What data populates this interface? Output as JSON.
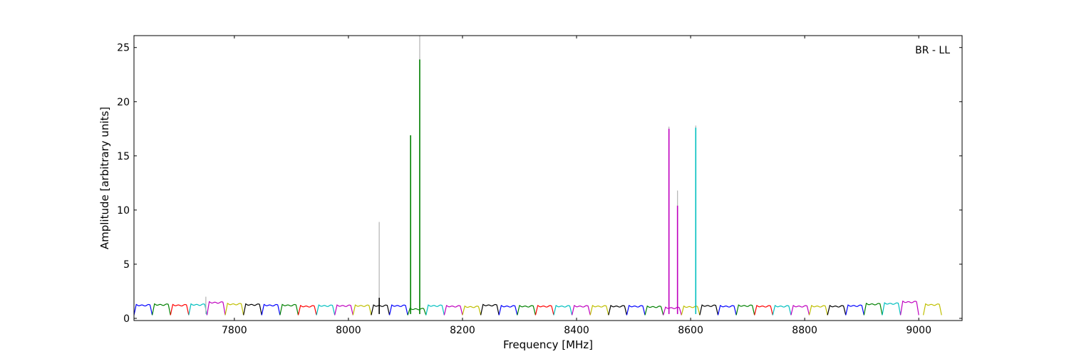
{
  "chart_data": {
    "type": "line",
    "title": "",
    "annotation": "BR - LL",
    "xlabel": "Frequency [MHz]",
    "ylabel": "Amplitude [arbitrary units]",
    "xlim": [
      7624,
      9076
    ],
    "ylim": [
      -0.2,
      26.1
    ],
    "xticks": [
      7800,
      8000,
      8200,
      8400,
      8600,
      8800,
      9000
    ],
    "yticks": [
      0,
      5,
      10,
      15,
      20,
      25
    ],
    "grid": false,
    "legend": "none",
    "channel_width_mhz": 32,
    "channel_shape": "bandpass ripple per channel: dip to ~0.3 at channel edges, plateau ~0.9-1.3",
    "colors": {
      "blue": "#0000ff",
      "green": "#008000",
      "red": "#ff0000",
      "cyan": "#00bfbf",
      "magenta": "#bf00bf",
      "olive": "#bfbf00",
      "black": "#000000",
      "gray": "#b3b3b3"
    },
    "color_cycle": [
      "blue",
      "green",
      "red",
      "cyan",
      "magenta",
      "olive",
      "black"
    ],
    "channels": [
      {
        "start": 7624,
        "color": "blue",
        "level": 1.25
      },
      {
        "start": 7656,
        "color": "green",
        "level": 1.3
      },
      {
        "start": 7688,
        "color": "red",
        "level": 1.25
      },
      {
        "start": 7720,
        "color": "cyan",
        "level": 1.3
      },
      {
        "start": 7752,
        "color": "magenta",
        "level": 1.5
      },
      {
        "start": 7784,
        "color": "olive",
        "level": 1.35
      },
      {
        "start": 7816,
        "color": "black",
        "level": 1.3
      },
      {
        "start": 7848,
        "color": "blue",
        "level": 1.25
      },
      {
        "start": 7880,
        "color": "green",
        "level": 1.25
      },
      {
        "start": 7912,
        "color": "red",
        "level": 1.15
      },
      {
        "start": 7944,
        "color": "cyan",
        "level": 1.2
      },
      {
        "start": 7976,
        "color": "magenta",
        "level": 1.2
      },
      {
        "start": 8008,
        "color": "olive",
        "level": 1.2
      },
      {
        "start": 8040,
        "color": "black",
        "level": 1.2
      },
      {
        "start": 8072,
        "color": "blue",
        "level": 1.2
      },
      {
        "start": 8104,
        "color": "green",
        "level": 0.9
      },
      {
        "start": 8136,
        "color": "cyan",
        "level": 1.2
      },
      {
        "start": 8168,
        "color": "magenta",
        "level": 1.15
      },
      {
        "start": 8200,
        "color": "olive",
        "level": 1.1
      },
      {
        "start": 8232,
        "color": "black",
        "level": 1.25
      },
      {
        "start": 8264,
        "color": "blue",
        "level": 1.15
      },
      {
        "start": 8296,
        "color": "green",
        "level": 1.15
      },
      {
        "start": 8328,
        "color": "red",
        "level": 1.15
      },
      {
        "start": 8360,
        "color": "cyan",
        "level": 1.15
      },
      {
        "start": 8392,
        "color": "magenta",
        "level": 1.15
      },
      {
        "start": 8424,
        "color": "olive",
        "level": 1.15
      },
      {
        "start": 8456,
        "color": "black",
        "level": 1.15
      },
      {
        "start": 8488,
        "color": "blue",
        "level": 1.15
      },
      {
        "start": 8520,
        "color": "green",
        "level": 1.1
      },
      {
        "start": 8552,
        "color": "magenta",
        "level": 1.0
      },
      {
        "start": 8584,
        "color": "olive",
        "level": 1.1
      },
      {
        "start": 8616,
        "color": "black",
        "level": 1.2
      },
      {
        "start": 8648,
        "color": "blue",
        "level": 1.15
      },
      {
        "start": 8680,
        "color": "green",
        "level": 1.2
      },
      {
        "start": 8712,
        "color": "red",
        "level": 1.15
      },
      {
        "start": 8744,
        "color": "cyan",
        "level": 1.15
      },
      {
        "start": 8776,
        "color": "magenta",
        "level": 1.15
      },
      {
        "start": 8808,
        "color": "olive",
        "level": 1.15
      },
      {
        "start": 8840,
        "color": "black",
        "level": 1.15
      },
      {
        "start": 8872,
        "color": "blue",
        "level": 1.2
      },
      {
        "start": 8904,
        "color": "green",
        "level": 1.35
      },
      {
        "start": 8936,
        "color": "cyan",
        "level": 1.4
      },
      {
        "start": 8968,
        "color": "magenta",
        "level": 1.55
      },
      {
        "start": 9008,
        "color": "olive",
        "level": 1.3
      }
    ],
    "spikes": [
      {
        "x": 7750,
        "y": 2.0,
        "color": "gray"
      },
      {
        "x": 8054,
        "y": 8.9,
        "color": "gray"
      },
      {
        "x": 8054,
        "y": 1.9,
        "color": "black"
      },
      {
        "x": 8109,
        "y": 16.9,
        "color": "green"
      },
      {
        "x": 8125,
        "y": 26.1,
        "color": "gray"
      },
      {
        "x": 8125,
        "y": 23.9,
        "color": "green"
      },
      {
        "x": 8562,
        "y": 17.7,
        "color": "gray"
      },
      {
        "x": 8562,
        "y": 17.5,
        "color": "magenta"
      },
      {
        "x": 8577,
        "y": 11.8,
        "color": "gray"
      },
      {
        "x": 8577,
        "y": 10.4,
        "color": "magenta"
      },
      {
        "x": 8609,
        "y": 17.8,
        "color": "gray"
      },
      {
        "x": 8609,
        "y": 17.6,
        "color": "cyan"
      }
    ]
  }
}
